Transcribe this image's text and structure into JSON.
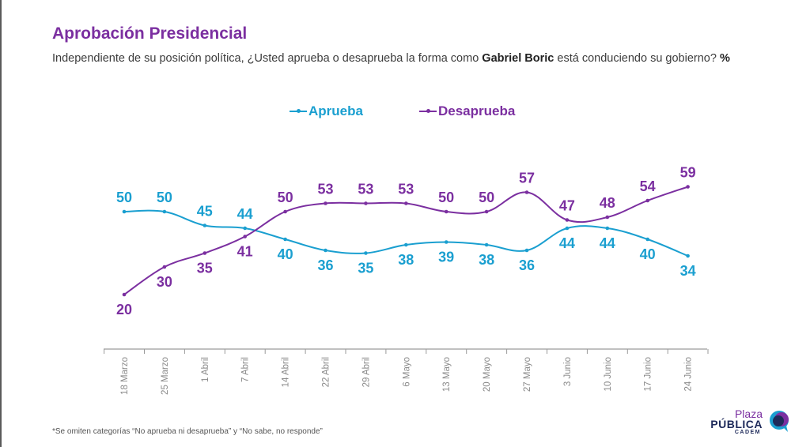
{
  "header": {
    "title": "Aprobación Presidencial",
    "subtitle_pre": "Independiente de su posición política, ¿Usted aprueba o desaprueba la forma como ",
    "subtitle_bold": "Gabriel Boric",
    "subtitle_post": " está conduciendo su gobierno? ",
    "subtitle_pct": "%"
  },
  "footnote": "*Se omiten categorías “No aprueba ni desaprueba” y “No sabe, no responde”",
  "logo": {
    "line1": "Plaza",
    "line2": "PÚBLICA",
    "line3": "CADEM"
  },
  "colors": {
    "aprueba": "#1a9fd0",
    "desaprueba": "#7b2fa0",
    "title": "#7b2fa0",
    "axis": "#9a9a9a"
  },
  "chart_data": {
    "type": "line",
    "categories": [
      "18 Marzo",
      "25 Marzo",
      "1 Abril",
      "7 Abril",
      "14 Abril",
      "22 Abril",
      "29 Abril",
      "6 Mayo",
      "13 Mayo",
      "20 Mayo",
      "27 Mayo",
      "3 Junio",
      "10 Junio",
      "17 Junio",
      "24 Junio"
    ],
    "series": [
      {
        "name": "Aprueba",
        "values": [
          50,
          50,
          45,
          44,
          40,
          36,
          35,
          38,
          39,
          38,
          36,
          44,
          44,
          40,
          34
        ]
      },
      {
        "name": "Desaprueba",
        "values": [
          20,
          30,
          35,
          41,
          50,
          53,
          53,
          53,
          50,
          50,
          57,
          47,
          48,
          54,
          59
        ]
      }
    ],
    "legend_position": "top-center",
    "grid": false
  }
}
